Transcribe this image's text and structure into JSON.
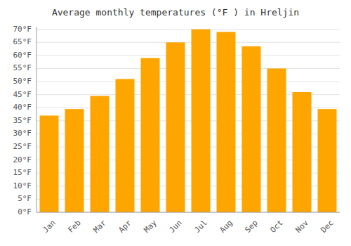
{
  "chart_data": {
    "type": "bar",
    "title": "Average monthly temperatures (°F ) in Hreljin",
    "categories": [
      "Jan",
      "Feb",
      "Mar",
      "Apr",
      "May",
      "Jun",
      "Jul",
      "Aug",
      "Sep",
      "Oct",
      "Nov",
      "Dec"
    ],
    "values": [
      37.0,
      39.5,
      44.5,
      51.0,
      59.0,
      65.0,
      70.0,
      69.0,
      63.5,
      55.0,
      46.0,
      39.5
    ],
    "color": "#FFA500",
    "ylim": [
      0,
      71
    ],
    "yticks": [
      {
        "value": 0,
        "label": "0°F"
      },
      {
        "value": 5,
        "label": "5°F"
      },
      {
        "value": 10,
        "label": "10°F"
      },
      {
        "value": 15,
        "label": "15°F"
      },
      {
        "value": 20,
        "label": "20°F"
      },
      {
        "value": 25,
        "label": "25°F"
      },
      {
        "value": 30,
        "label": "30°F"
      },
      {
        "value": 35,
        "label": "35°F"
      },
      {
        "value": 40,
        "label": "40°F"
      },
      {
        "value": 45,
        "label": "45°F"
      },
      {
        "value": 50,
        "label": "50°F"
      },
      {
        "value": 55,
        "label": "55°F"
      },
      {
        "value": 60,
        "label": "60°F"
      },
      {
        "value": 65,
        "label": "65°F"
      },
      {
        "value": 70,
        "label": "70°F"
      }
    ],
    "grid": true
  }
}
